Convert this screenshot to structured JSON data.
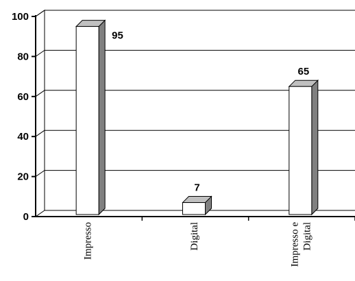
{
  "chart_data": {
    "type": "bar",
    "categories": [
      [
        "Impresso"
      ],
      [
        "Digital"
      ],
      [
        "Impresso e",
        "Digital"
      ]
    ],
    "values": [
      95,
      7,
      65
    ],
    "data_labels": [
      "95",
      "7",
      "65"
    ],
    "y_ticks": [
      "0",
      "20",
      "40",
      "60",
      "80",
      "100"
    ],
    "ylim": [
      0,
      100
    ],
    "grid": true,
    "style": "3d",
    "colors": {
      "bar_front": "#ffffff",
      "bar_side": "#808080",
      "bar_top": "#c0c0c0",
      "axis": "#000000"
    }
  }
}
